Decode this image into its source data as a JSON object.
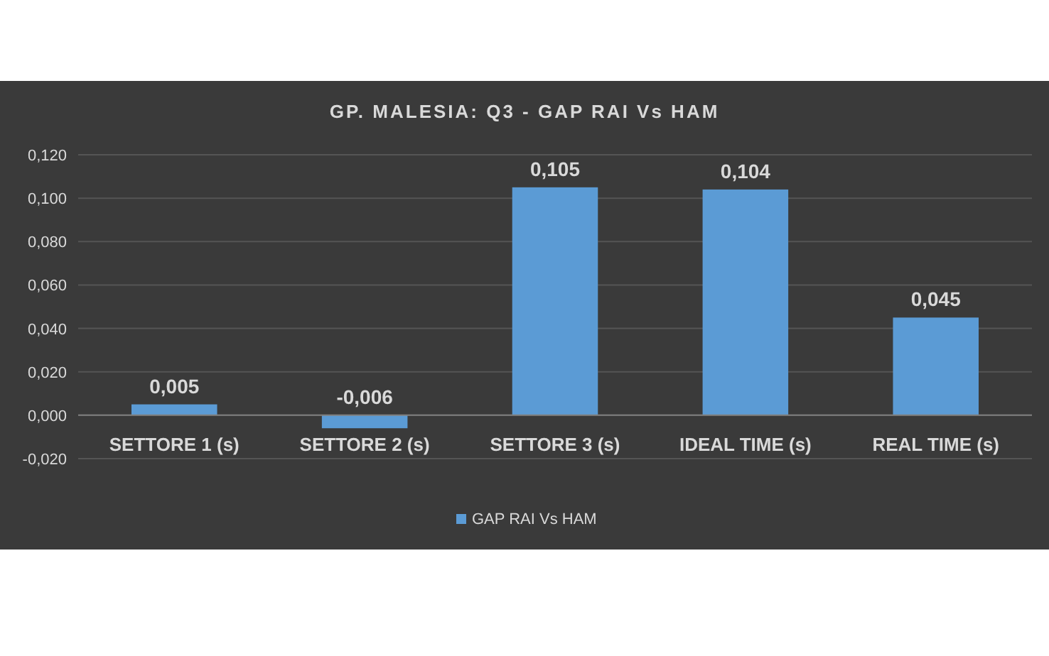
{
  "chart_data": {
    "type": "bar",
    "title": "GP. MALESIA: Q3 - GAP RAI Vs HAM",
    "categories": [
      "SETTORE 1 (s)",
      "SETTORE 2 (s)",
      "SETTORE 3 (s)",
      "IDEAL TIME (s)",
      "REAL TIME (s)"
    ],
    "series": [
      {
        "name": "GAP RAI Vs HAM",
        "color": "#5b9bd5",
        "values": [
          0.005,
          -0.006,
          0.105,
          0.104,
          0.045
        ],
        "value_labels": [
          "0,005",
          "-0,006",
          "0,105",
          "0,104",
          "0,045"
        ]
      }
    ],
    "ylim": [
      -0.02,
      0.12
    ],
    "yticks": [
      {
        "value": -0.02,
        "label": "-0,020"
      },
      {
        "value": 0,
        "label": "0,000"
      },
      {
        "value": 0.02,
        "label": "0,020"
      },
      {
        "value": 0.04,
        "label": "0,040"
      },
      {
        "value": 0.06,
        "label": "0,060"
      },
      {
        "value": 0.08,
        "label": "0,080"
      },
      {
        "value": 0.1,
        "label": "0,100"
      },
      {
        "value": 0.12,
        "label": "0,120"
      }
    ],
    "grid": "y",
    "legend": "bottom"
  }
}
